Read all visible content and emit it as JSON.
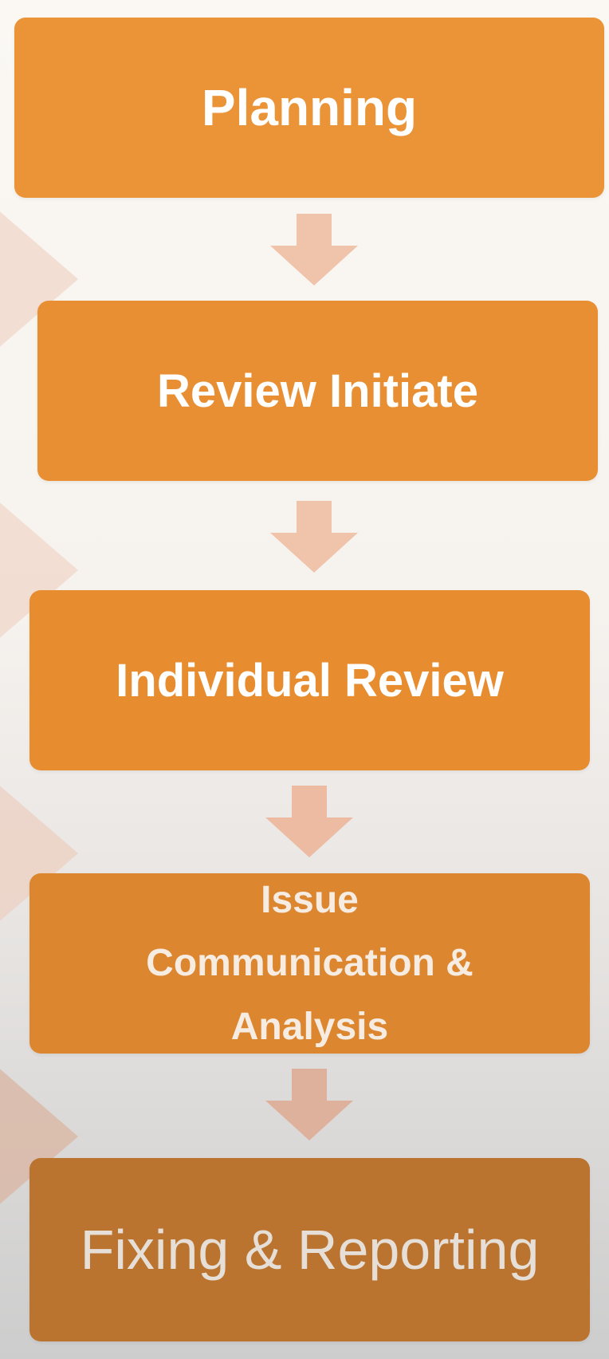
{
  "steps": [
    {
      "label": "Planning"
    },
    {
      "label": "Review Initiate"
    },
    {
      "label": "Individual Review"
    },
    {
      "lines": [
        "Issue",
        "Communication &",
        "Analysis"
      ]
    },
    {
      "label": "Fixing & Reporting"
    }
  ],
  "colors": {
    "box_1": "#ea9337",
    "box_2": "#e98f33",
    "box_3": "#e78d30",
    "box_4": "#dc8630",
    "box_5": "#ba7430",
    "arrow": "#f0c3ab",
    "chevron": "#f1d9cd"
  },
  "icons": {
    "connector": "down-arrow-icon",
    "background_shape": "chevron-shape"
  }
}
